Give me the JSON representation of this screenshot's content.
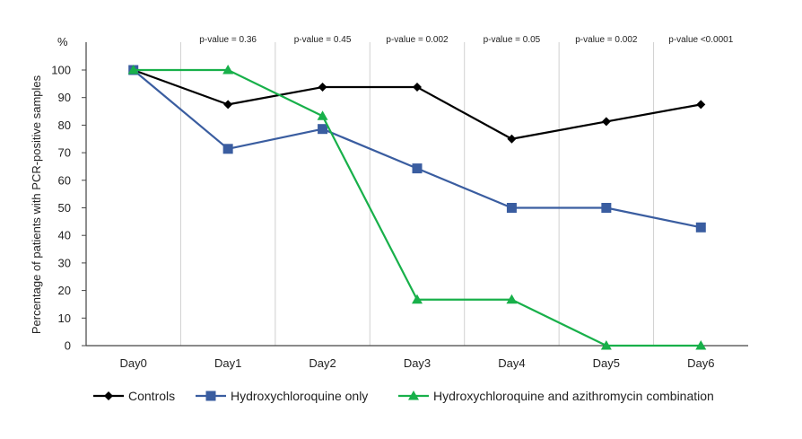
{
  "chart_data": {
    "type": "line",
    "title": "",
    "xlabel": "",
    "ylabel": "Percentage of patients with PCR-positive samples",
    "yunit": "%",
    "ylim": [
      0,
      100
    ],
    "yticks": [
      0,
      10,
      20,
      30,
      40,
      50,
      60,
      70,
      80,
      90,
      100
    ],
    "categories": [
      "Day0",
      "Day1",
      "Day2",
      "Day3",
      "Day4",
      "Day5",
      "Day6"
    ],
    "p_values": [
      "",
      "p-value = 0.36",
      "p-value = 0.45",
      "p-value = 0.002",
      "p-value = 0.05",
      "p-value = 0.002",
      "p-value <0.0001"
    ],
    "grid": "vertical",
    "legend_position": "bottom",
    "series": [
      {
        "name": "Controls",
        "values": [
          100,
          87.5,
          93.8,
          93.8,
          75,
          81.3,
          87.5
        ],
        "color": "#000000",
        "marker": "diamond"
      },
      {
        "name": "Hydroxychloroquine only",
        "values": [
          100,
          71.4,
          78.6,
          64.3,
          50,
          50,
          42.9
        ],
        "color": "#3a5da0",
        "marker": "square"
      },
      {
        "name": "Hydroxychloroquine and azithromycin combination",
        "values": [
          100,
          100,
          83.3,
          16.7,
          16.7,
          0,
          0
        ],
        "color": "#18b04a",
        "marker": "triangle"
      }
    ]
  }
}
